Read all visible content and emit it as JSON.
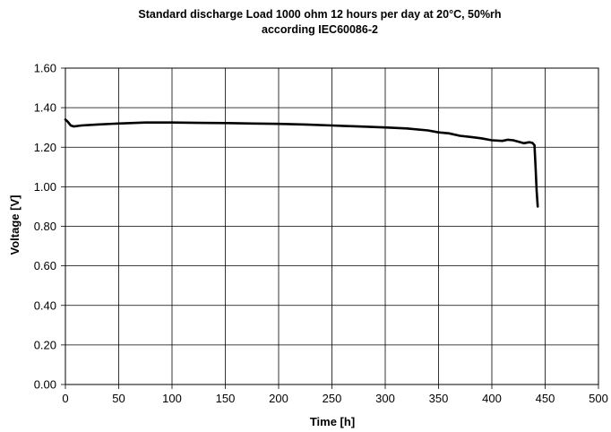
{
  "chart_data": {
    "type": "line",
    "title": [
      "Standard discharge Load 1000 ohm 12 hours per day at 20°C, 50%rh",
      "according IEC60086-2"
    ],
    "xlabel": "Time [h]",
    "ylabel": "Voltage [V]",
    "xlim": [
      0,
      500
    ],
    "ylim": [
      0,
      1.6
    ],
    "x_ticks": [
      0,
      50,
      100,
      150,
      200,
      250,
      300,
      350,
      400,
      450,
      500
    ],
    "y_ticks": [
      0,
      0.2,
      0.4,
      0.6,
      0.8,
      1.0,
      1.2,
      1.4,
      1.6
    ],
    "x_tick_labels": [
      "0",
      "50",
      "100",
      "150",
      "200",
      "250",
      "300",
      "350",
      "400",
      "450",
      "500"
    ],
    "y_tick_labels": [
      "0.00",
      "0.20",
      "0.40",
      "0.60",
      "0.80",
      "1.00",
      "1.20",
      "1.40",
      "1.60"
    ],
    "grid": true,
    "series": [
      {
        "color": "#000000",
        "x": [
          0,
          2,
          5,
          8,
          15,
          30,
          50,
          75,
          100,
          125,
          150,
          175,
          200,
          225,
          250,
          275,
          300,
          320,
          340,
          350,
          360,
          370,
          380,
          390,
          400,
          410,
          415,
          420,
          425,
          430,
          435,
          438,
          440,
          441,
          442,
          443
        ],
        "y": [
          1.34,
          1.33,
          1.31,
          1.305,
          1.31,
          1.315,
          1.32,
          1.325,
          1.325,
          1.323,
          1.322,
          1.32,
          1.318,
          1.315,
          1.31,
          1.305,
          1.3,
          1.295,
          1.285,
          1.275,
          1.27,
          1.258,
          1.252,
          1.245,
          1.235,
          1.232,
          1.238,
          1.235,
          1.228,
          1.22,
          1.225,
          1.222,
          1.21,
          1.1,
          0.98,
          0.9
        ]
      }
    ]
  }
}
